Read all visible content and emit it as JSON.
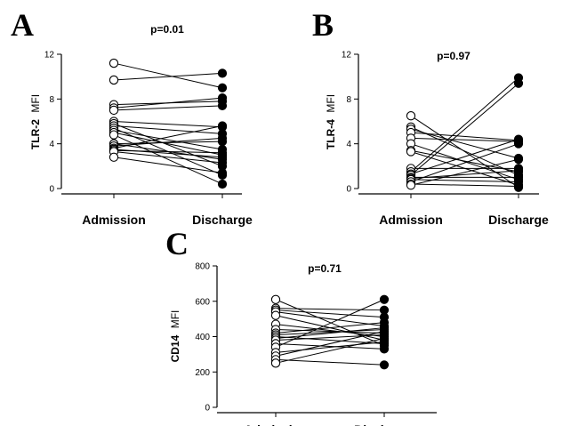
{
  "chart_data": [
    {
      "panel": "A",
      "type": "scatter",
      "title": "p=0.01",
      "ylabel": "TLR-2",
      "ylabel_unit": "MFI",
      "categories": [
        "Admission",
        "Discharge"
      ],
      "ylim": [
        0,
        12
      ],
      "yticks": [
        0,
        4,
        8,
        12
      ],
      "grid": false,
      "series": [
        {
          "values": [
            11.2,
            9.0
          ]
        },
        {
          "values": [
            9.7,
            10.3
          ]
        },
        {
          "values": [
            7.5,
            7.8
          ]
        },
        {
          "values": [
            7.2,
            8.1
          ]
        },
        {
          "values": [
            7.0,
            7.4
          ]
        },
        {
          "values": [
            6.0,
            5.5
          ]
        },
        {
          "values": [
            5.8,
            2.0
          ]
        },
        {
          "values": [
            5.6,
            4.9
          ]
        },
        {
          "values": [
            5.4,
            1.2
          ]
        },
        {
          "values": [
            5.2,
            3.5
          ]
        },
        {
          "values": [
            5.0,
            3.0
          ]
        },
        {
          "values": [
            4.8,
            0.4
          ]
        },
        {
          "values": [
            4.0,
            4.2
          ]
        },
        {
          "values": [
            4.0,
            2.6
          ]
        },
        {
          "values": [
            3.8,
            4.5
          ]
        },
        {
          "values": [
            3.6,
            5.6
          ]
        },
        {
          "values": [
            3.5,
            2.8
          ]
        },
        {
          "values": [
            3.4,
            3.2
          ]
        },
        {
          "values": [
            3.3,
            2.3
          ]
        },
        {
          "values": [
            2.8,
            1.4
          ]
        }
      ]
    },
    {
      "panel": "B",
      "type": "scatter",
      "title": "p=0.97",
      "ylabel": "TLR-4",
      "ylabel_unit": "MFI",
      "categories": [
        "Admission",
        "Discharge"
      ],
      "ylim": [
        0,
        12
      ],
      "yticks": [
        0,
        4,
        8,
        12
      ],
      "grid": false,
      "series": [
        {
          "values": [
            6.5,
            0.1
          ]
        },
        {
          "values": [
            5.5,
            1.2
          ]
        },
        {
          "values": [
            5.3,
            2.7
          ]
        },
        {
          "values": [
            5.0,
            4.3
          ]
        },
        {
          "values": [
            4.5,
            4.2
          ]
        },
        {
          "values": [
            4.0,
            0.8
          ]
        },
        {
          "values": [
            3.4,
            1.5
          ]
        },
        {
          "values": [
            3.3,
            0.3
          ]
        },
        {
          "values": [
            1.8,
            1.8
          ]
        },
        {
          "values": [
            1.5,
            9.9
          ]
        },
        {
          "values": [
            1.3,
            4.4
          ]
        },
        {
          "values": [
            1.2,
            9.4
          ]
        },
        {
          "values": [
            1.0,
            1.0
          ]
        },
        {
          "values": [
            0.9,
            1.6
          ]
        },
        {
          "values": [
            0.8,
            0.6
          ]
        },
        {
          "values": [
            0.6,
            4.0
          ]
        },
        {
          "values": [
            0.4,
            0.2
          ]
        },
        {
          "values": [
            0.3,
            2.6
          ]
        }
      ]
    },
    {
      "panel": "C",
      "type": "scatter",
      "title": "p=0.71",
      "ylabel": "CD14",
      "ylabel_unit": "MFI",
      "categories": [
        "Admission",
        "Discharge"
      ],
      "ylim": [
        0,
        800
      ],
      "yticks": [
        0,
        200,
        400,
        600,
        800
      ],
      "grid": false,
      "series": [
        {
          "values": [
            610,
            350
          ]
        },
        {
          "values": [
            560,
            550
          ]
        },
        {
          "values": [
            550,
            510
          ]
        },
        {
          "values": [
            540,
            460
          ]
        },
        {
          "values": [
            520,
            380
          ]
        },
        {
          "values": [
            470,
            400
          ]
        },
        {
          "values": [
            440,
            420
          ]
        },
        {
          "values": [
            420,
            480
          ]
        },
        {
          "values": [
            410,
            440
          ]
        },
        {
          "values": [
            400,
            360
          ]
        },
        {
          "values": [
            390,
            450
          ]
        },
        {
          "values": [
            380,
            410
          ]
        },
        {
          "values": [
            360,
            330
          ]
        },
        {
          "values": [
            340,
            610
          ]
        },
        {
          "values": [
            310,
            370
          ]
        },
        {
          "values": [
            290,
            430
          ]
        },
        {
          "values": [
            270,
            240
          ]
        },
        {
          "values": [
            250,
            390
          ]
        }
      ]
    }
  ]
}
